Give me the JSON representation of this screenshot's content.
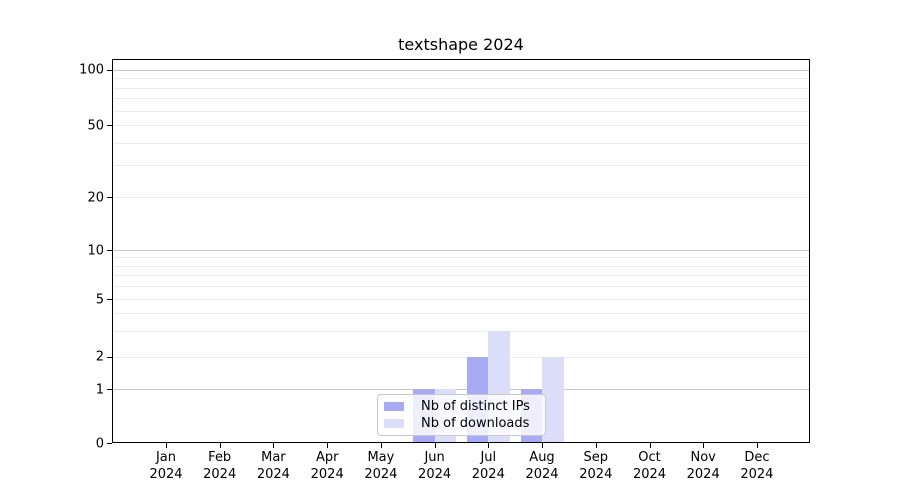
{
  "colors": {
    "series": [
      "#a8aaf4",
      "#dcddf9"
    ],
    "grid_decade": "#c6c6c6",
    "grid_minor": "#ececec",
    "axis": "#000000",
    "legend_border": "#c9c9c9",
    "background": "#ffffff",
    "text": "#000000"
  },
  "chart_data": {
    "type": "bar",
    "title": "textshape 2024",
    "x": {
      "months": [
        "Jan",
        "Feb",
        "Mar",
        "Apr",
        "May",
        "Jun",
        "Jul",
        "Aug",
        "Sep",
        "Oct",
        "Nov",
        "Dec"
      ],
      "year": "2024"
    },
    "y_axis": {
      "scale": "symlog",
      "ticks": [
        0,
        1,
        2,
        5,
        10,
        20,
        50,
        100
      ],
      "decade_lines": [
        1,
        10,
        100
      ],
      "minor_gridlines": [
        3,
        4,
        6,
        7,
        8,
        9,
        30,
        40,
        60,
        70,
        80,
        90
      ],
      "ylim": [
        0,
        115
      ]
    },
    "series": [
      {
        "name": "Nb of distinct IPs",
        "values": [
          0,
          0,
          0,
          0,
          0,
          1,
          2,
          1,
          0,
          0,
          0,
          0
        ]
      },
      {
        "name": "Nb of downloads",
        "values": [
          0,
          0,
          0,
          0,
          0,
          1,
          3,
          2,
          0,
          0,
          0,
          0
        ]
      }
    ],
    "legend_position": "inside-bottom-center",
    "grid": true
  }
}
